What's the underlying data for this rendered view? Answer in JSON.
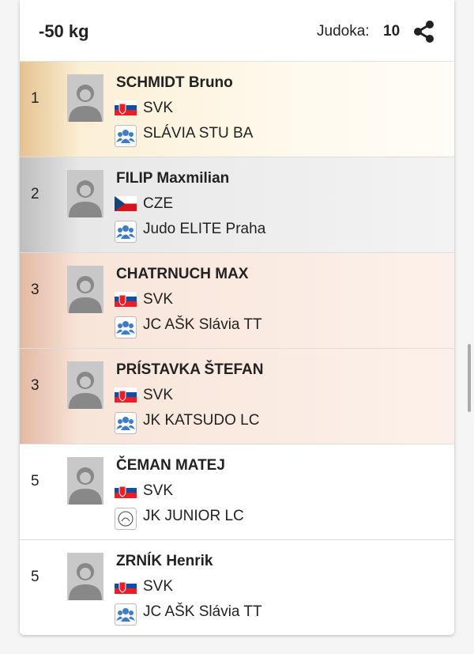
{
  "header": {
    "title": "-50 kg",
    "count_label": "Judoka:",
    "count": "10"
  },
  "rows": [
    {
      "rank": "1",
      "name": "SCHMIDT Bruno",
      "country": "SVK",
      "club": "SLÁVIA STU BA"
    },
    {
      "rank": "2",
      "name": "FILIP Maxmilian",
      "country": "CZE",
      "club": "Judo ELITE Praha"
    },
    {
      "rank": "3",
      "name": "CHATRNUCH MAX",
      "country": "SVK",
      "club": "JC AŠK Slávia TT"
    },
    {
      "rank": "3",
      "name": "PRÍSTAVKA ŠTEFAN",
      "country": "SVK",
      "club": "JK KATSUDO LC"
    },
    {
      "rank": "5",
      "name": "ČEMAN MATEJ",
      "country": "SVK",
      "club": "JK JUNIOR LC"
    },
    {
      "rank": "5",
      "name": "ZRNÍK Henrik",
      "country": "SVK",
      "club": "JC AŠK Slávia TT"
    }
  ]
}
